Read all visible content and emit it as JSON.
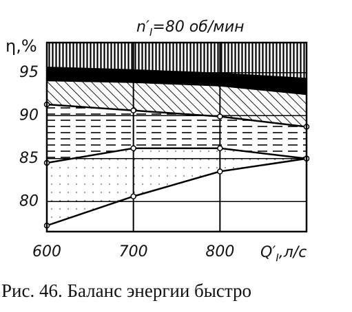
{
  "chart_data": {
    "type": "area",
    "title_symbol": "n′",
    "title_subscript": "I",
    "title_rest": "=80 об/мин",
    "ylabel": "η,%",
    "xlabel_symbol": "Q′",
    "xlabel_subscript": "I",
    "xlabel_rest": ",л/с",
    "caption": "Рис. 46. Баланс энергии быстро",
    "x": [
      600,
      700,
      800,
      900
    ],
    "xlim": [
      600,
      900
    ],
    "xticks": [
      600,
      700,
      800
    ],
    "ylim": [
      76.5,
      98.5
    ],
    "yticks": [
      80,
      85,
      90,
      95
    ],
    "grid": true,
    "series": [
      {
        "values": [
          77.2,
          80.6,
          83.5,
          85.0
        ],
        "fill": "none",
        "markers": true,
        "color": "#000000"
      },
      {
        "values": [
          84.5,
          86.2,
          86.2,
          85.0
        ],
        "fill": "dots",
        "markers": true,
        "color": "#000000"
      },
      {
        "values": [
          91.3,
          90.6,
          89.9,
          88.7
        ],
        "fill": "dashes",
        "markers": true,
        "color": "#000000"
      },
      {
        "values": [
          94.1,
          93.9,
          93.5,
          92.5
        ],
        "fill": "diagonal",
        "markers": false,
        "color": "#000000"
      },
      {
        "values": [
          95.6,
          95.3,
          94.9,
          94.3
        ],
        "fill": "solid",
        "markers": false,
        "color": "#000000"
      }
    ],
    "top_fill": "vertical"
  }
}
